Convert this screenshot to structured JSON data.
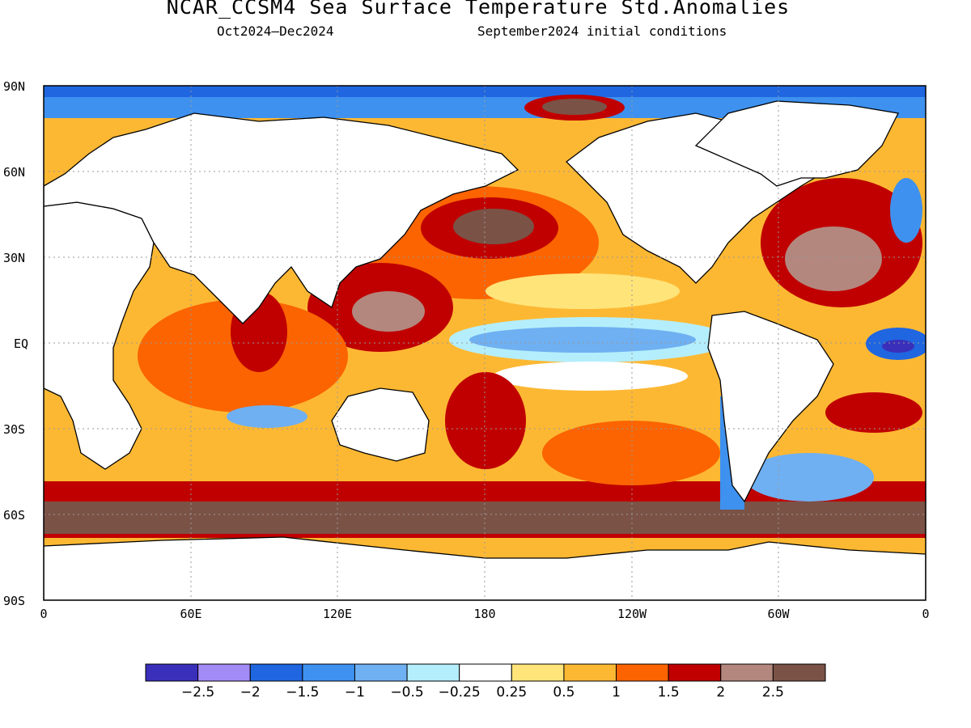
{
  "title": "NCAR_CCSM4 Sea Surface Temperature Std.Anomalies",
  "subtitle_left": "Oct2024–Dec2024",
  "subtitle_right": "September2024 initial conditions",
  "map": {
    "lat_labels": [
      "90N",
      "60N",
      "30N",
      "EQ",
      "30S",
      "60S",
      "90S"
    ],
    "lon_labels": [
      "0",
      "60E",
      "120E",
      "180",
      "120W",
      "60W",
      "0"
    ],
    "ocean_colors": {
      "deep_cold": "#3a2fba",
      "cold": "#a38bf5",
      "cool": "#1f66e0",
      "cool2": "#3e91ef",
      "mild_cool": "#6fb0f2",
      "slight_cool": "#b4eefc",
      "neutral": "#ffffff",
      "slight_warm": "#ffe47a",
      "warm": "#fdb833",
      "warmer": "#fb6400",
      "hot": "#c00000",
      "very_hot": "#b3877e",
      "extreme": "#7a5246"
    }
  },
  "colorbar": {
    "colors": [
      "#3a2fba",
      "#a38bf5",
      "#1f66e0",
      "#3e91ef",
      "#6fb0f2",
      "#b4eefc",
      "#ffffff",
      "#ffe47a",
      "#fdb833",
      "#fb6400",
      "#c00000",
      "#b3877e",
      "#7a5246"
    ],
    "labels": [
      "−2.5",
      "−2",
      "−1.5",
      "−1",
      "−0.5",
      "−0.25",
      "0.25",
      "0.5",
      "1",
      "1.5",
      "2",
      "2.5"
    ]
  }
}
